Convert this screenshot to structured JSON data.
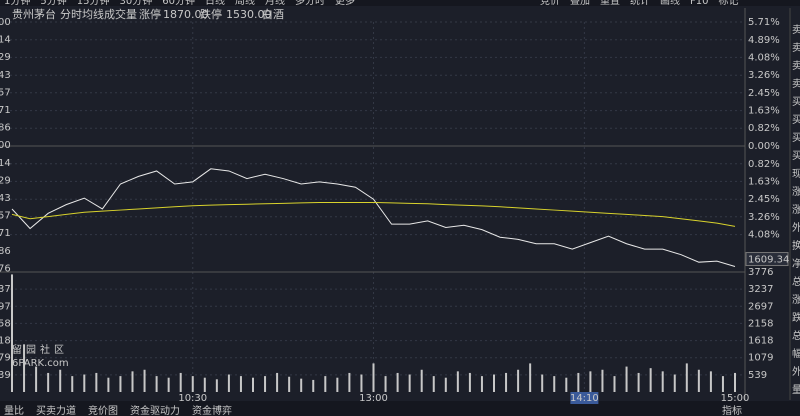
{
  "toolbar": {
    "left": [
      "1分钟",
      "5分钟",
      "15分钟",
      "30分钟",
      "60分钟",
      "日线",
      "周线",
      "月线",
      "多分时",
      "更多"
    ],
    "right": [
      "竞价",
      "叠加",
      "重置",
      "统计",
      "画线",
      "F10",
      "标记"
    ]
  },
  "header": {
    "name": "贵州茅台",
    "items": [
      "分时",
      "均线",
      "成交量"
    ],
    "limit_up_label": "涨停",
    "limit_up": "1870.00",
    "limit_down_label": "跌停",
    "limit_down": "1530.00",
    "sector": "白酒"
  },
  "side_column": [
    "卖",
    "卖",
    "卖",
    "卖",
    "买",
    "买",
    "买",
    "买",
    "现",
    "涨",
    "涨",
    "外",
    "换",
    "净",
    "总",
    "涨",
    "跌",
    "总",
    "幅",
    "外",
    "量"
  ],
  "watermark": {
    "title": "留园社区",
    "site": "6PARK.com"
  },
  "bottom_tabs": [
    "量比",
    "买卖力道",
    "竞价图",
    "资金驱动力",
    "资金博弈"
  ],
  "bottom_right": "指标",
  "chart_data": [
    {
      "type": "line",
      "xlim": [
        0,
        240
      ],
      "xticks": [
        {
          "value": 60,
          "label": "10:30"
        },
        {
          "value": 120,
          "label": "13:00"
        },
        {
          "value": 190,
          "label": "14:10"
        },
        {
          "value": 240,
          "label": "15:00"
        }
      ],
      "ylim": [
        -5.71,
        5.71
      ],
      "yticks": [
        {
          "value": 5.71,
          "label": "5.71%"
        },
        {
          "value": 4.89,
          "label": "4.89%"
        },
        {
          "value": 4.08,
          "label": "4.08%"
        },
        {
          "value": 3.26,
          "label": "3.26%"
        },
        {
          "value": 2.45,
          "label": "2.45%"
        },
        {
          "value": 1.63,
          "label": "1.63%"
        },
        {
          "value": 0.82,
          "label": "0.82%"
        },
        {
          "value": 0,
          "label": "0.00%"
        },
        {
          "value": -0.82,
          "label": "0.82%"
        },
        {
          "value": -1.63,
          "label": "1.63%"
        },
        {
          "value": -2.45,
          "label": "2.45%"
        },
        {
          "value": -3.26,
          "label": "3.26%"
        },
        {
          "value": -4.08,
          "label": "4.08%"
        }
      ],
      "left_labels": [
        "00",
        "14",
        "29",
        "43",
        "57",
        "71",
        "86",
        "00",
        "14",
        "29",
        "43",
        "57",
        "71",
        "86",
        "76"
      ],
      "last_price": "1609.34",
      "x": [
        0,
        6,
        12,
        18,
        24,
        30,
        36,
        42,
        48,
        54,
        60,
        66,
        72,
        78,
        84,
        90,
        96,
        102,
        108,
        114,
        120,
        126,
        132,
        138,
        144,
        150,
        156,
        162,
        168,
        174,
        180,
        186,
        192,
        198,
        204,
        210,
        216,
        222,
        228,
        234,
        240
      ],
      "series": [
        {
          "name": "分时",
          "color": "#e8e8e8",
          "values": [
            -2.9,
            -3.8,
            -3.1,
            -2.7,
            -2.4,
            -2.9,
            -1.75,
            -1.4,
            -1.15,
            -1.75,
            -1.65,
            -1.05,
            -1.15,
            -1.5,
            -1.3,
            -1.5,
            -1.75,
            -1.65,
            -1.75,
            -1.9,
            -2.45,
            -3.6,
            -3.6,
            -3.45,
            -3.75,
            -3.65,
            -3.85,
            -4.2,
            -4.3,
            -4.5,
            -4.5,
            -4.75,
            -4.45,
            -4.15,
            -4.5,
            -4.75,
            -4.75,
            -5.0,
            -5.35,
            -5.3,
            -5.55
          ]
        },
        {
          "name": "均线",
          "color": "#d8d22c",
          "values": [
            -3.15,
            -3.35,
            -3.25,
            -3.15,
            -3.05,
            -3.0,
            -2.95,
            -2.9,
            -2.85,
            -2.8,
            -2.75,
            -2.72,
            -2.7,
            -2.68,
            -2.66,
            -2.64,
            -2.62,
            -2.6,
            -2.6,
            -2.6,
            -2.6,
            -2.62,
            -2.64,
            -2.66,
            -2.7,
            -2.73,
            -2.76,
            -2.8,
            -2.85,
            -2.9,
            -2.95,
            -3.0,
            -3.05,
            -3.1,
            -3.15,
            -3.2,
            -3.25,
            -3.35,
            -3.45,
            -3.55,
            -3.7
          ]
        }
      ]
    },
    {
      "type": "bar",
      "xlim": [
        0,
        240
      ],
      "ylim": [
        0,
        3776
      ],
      "yticks": [
        3776,
        3237,
        2697,
        2158,
        1618,
        1079,
        539
      ],
      "left_labels": [
        "37",
        "97",
        "58",
        "18",
        "79",
        "39"
      ],
      "color": "#c8c8c8",
      "x": [
        0,
        4,
        8,
        12,
        16,
        20,
        24,
        28,
        32,
        36,
        40,
        44,
        48,
        52,
        56,
        60,
        64,
        68,
        72,
        76,
        80,
        84,
        88,
        92,
        96,
        100,
        104,
        108,
        112,
        116,
        120,
        124,
        128,
        132,
        136,
        140,
        144,
        148,
        152,
        156,
        160,
        164,
        168,
        172,
        176,
        180,
        184,
        188,
        192,
        196,
        200,
        204,
        208,
        212,
        216,
        220,
        224,
        228,
        232,
        236,
        240
      ],
      "values": [
        3700,
        1500,
        800,
        600,
        700,
        500,
        550,
        600,
        450,
        500,
        650,
        700,
        500,
        450,
        600,
        500,
        450,
        400,
        550,
        500,
        450,
        500,
        600,
        480,
        420,
        380,
        500,
        450,
        600,
        550,
        900,
        500,
        600,
        550,
        700,
        500,
        450,
        650,
        600,
        500,
        550,
        600,
        700,
        900,
        550,
        500,
        450,
        600,
        650,
        700,
        500,
        800,
        600,
        750,
        650,
        550,
        900,
        700,
        650,
        500,
        600
      ]
    }
  ]
}
